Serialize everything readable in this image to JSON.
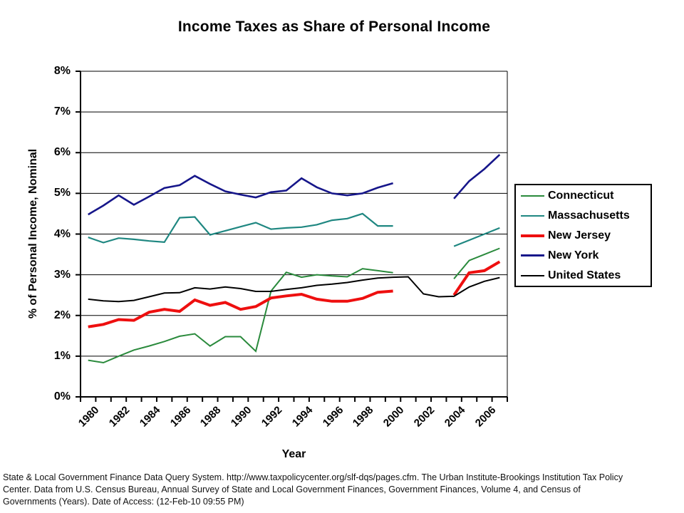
{
  "chart_data": {
    "type": "line",
    "title": "Income Taxes as Share of Personal Income",
    "xlabel": "Year",
    "ylabel": "% of Personal Income, Nominal",
    "x": [
      1980,
      1981,
      1982,
      1983,
      1984,
      1985,
      1986,
      1987,
      1988,
      1989,
      1990,
      1991,
      1992,
      1993,
      1994,
      1995,
      1996,
      1997,
      1998,
      1999,
      2000,
      2001,
      2002,
      2003,
      2004,
      2005,
      2006,
      2007
    ],
    "x_tick_labels": [
      "1980",
      "1982",
      "1984",
      "1986",
      "1988",
      "1990",
      "1992",
      "1994",
      "1996",
      "1998",
      "2000",
      "2002",
      "2004",
      "2006"
    ],
    "y_tick_labels": [
      "0%",
      "1%",
      "2%",
      "3%",
      "4%",
      "5%",
      "6%",
      "7%",
      "8%"
    ],
    "ylim": [
      0,
      8
    ],
    "grid": "horizontal",
    "legend_position": "right",
    "series": [
      {
        "name": "Connecticut",
        "color": "#2a8a3c",
        "width": 2,
        "values": [
          0.9,
          0.84,
          1.0,
          1.15,
          1.25,
          1.36,
          1.49,
          1.55,
          1.25,
          1.48,
          1.48,
          1.12,
          2.6,
          3.06,
          2.94,
          3.0,
          2.97,
          2.95,
          3.15,
          3.1,
          3.05,
          null,
          null,
          null,
          2.9,
          3.35,
          3.5,
          3.65
        ]
      },
      {
        "name": "Massachusetts",
        "color": "#1f8781",
        "width": 2.2,
        "values": [
          3.92,
          3.79,
          3.9,
          3.87,
          3.83,
          3.8,
          4.4,
          4.42,
          3.98,
          4.08,
          4.18,
          4.28,
          4.12,
          4.15,
          4.17,
          4.23,
          4.34,
          4.38,
          4.5,
          4.2,
          4.2,
          null,
          null,
          null,
          3.7,
          3.85,
          4.0,
          4.15
        ]
      },
      {
        "name": "New Jersey",
        "color": "#ee0f0f",
        "width": 4,
        "values": [
          1.72,
          1.78,
          1.9,
          1.88,
          2.08,
          2.15,
          2.1,
          2.38,
          2.25,
          2.32,
          2.15,
          2.22,
          2.43,
          2.48,
          2.52,
          2.4,
          2.35,
          2.35,
          2.42,
          2.57,
          2.6,
          null,
          null,
          null,
          2.5,
          3.05,
          3.1,
          3.32
        ]
      },
      {
        "name": "New York",
        "color": "#16168a",
        "width": 2.6,
        "values": [
          4.48,
          4.7,
          4.95,
          4.72,
          4.92,
          5.13,
          5.2,
          5.43,
          5.23,
          5.05,
          4.97,
          4.9,
          5.03,
          5.07,
          5.37,
          5.15,
          5.0,
          4.95,
          5.0,
          5.14,
          5.25,
          null,
          null,
          null,
          4.87,
          5.3,
          5.6,
          5.95
        ]
      },
      {
        "name": "United States",
        "color": "#000000",
        "width": 2,
        "values": [
          2.4,
          2.36,
          2.34,
          2.37,
          2.46,
          2.55,
          2.56,
          2.68,
          2.65,
          2.7,
          2.66,
          2.59,
          2.59,
          2.64,
          2.68,
          2.74,
          2.77,
          2.81,
          2.87,
          2.92,
          2.94,
          2.95,
          2.53,
          2.46,
          2.47,
          2.7,
          2.84,
          2.93
        ]
      }
    ]
  },
  "footer": {
    "lines": [
      "State & Local Government Finance Data Query System. http://www.taxpolicycenter.org/slf-dqs/pages.cfm. The Urban Institute-Brookings Institution Tax Policy",
      "Center. Data from U.S. Census Bureau, Annual Survey of State and Local Government Finances, Government Finances, Volume 4, and Census of",
      "Governments (Years). Date of Access: (12-Feb-10 09:55 PM)"
    ]
  }
}
